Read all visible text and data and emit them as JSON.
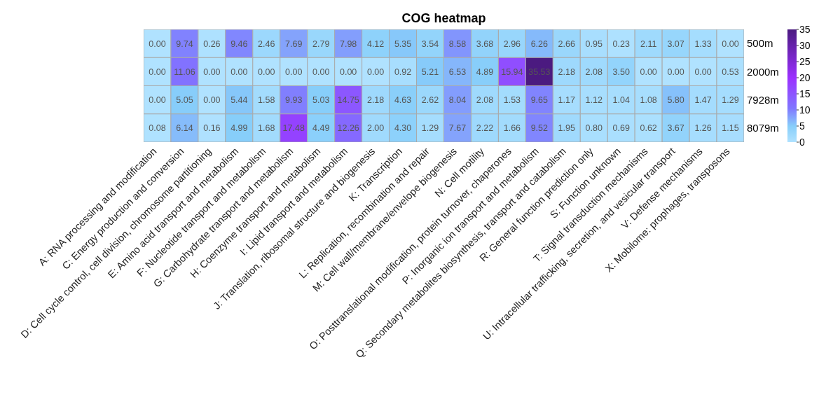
{
  "chart_data": {
    "type": "heatmap",
    "title": "COG heatmap",
    "categories": [
      "A: RNA processing and modification",
      "C: Energy production and conversion",
      "D: Cell cycle control, cell division, chromosome partitioning",
      "E: Amino acid transport and metabolism",
      "F: Nucleotide transport and metabolism",
      "G: Carbohydrate transport and metabolism",
      "H: Coenzyme transport and metabolism",
      "I: Lipid transport and metabolism",
      "J: Translation, ribosomal structure and biogenesis",
      "K: Transcription",
      "L: Replication, recombination and repair",
      "M: Cell wall/membrane/envelope biogenesis",
      "N: Cell motility",
      "O: Posttranslational modification, protein turnover, chaperones",
      "P: Inorganic ion transport and metabolism",
      "Q: Secondary metabolites biosynthesis, transport and catabolism",
      "R: General function prediction only",
      "S: Function unknown",
      "T: Signal transduction mechanisms",
      "U: Intracellular trafficking, secretion, and vesicular transport",
      "V: Defense mechanisms",
      "X: Mobilome: prophages, transposons"
    ],
    "y_categories": [
      "500m",
      "2000m",
      "7928m",
      "8079m"
    ],
    "cells": [
      [
        0.0,
        9.74,
        0.26,
        9.46,
        2.46,
        7.69,
        2.79,
        7.98,
        4.12,
        5.35,
        3.54,
        8.58,
        3.68,
        2.96,
        6.26,
        2.66,
        0.95,
        0.23,
        2.11,
        3.07,
        1.33,
        0.0
      ],
      [
        0.0,
        11.06,
        0.0,
        0.0,
        0.0,
        0.0,
        0.0,
        0.0,
        0.0,
        0.92,
        5.21,
        6.53,
        4.89,
        15.94,
        35.53,
        2.18,
        2.08,
        3.5,
        0.0,
        0.0,
        0.0,
        0.53
      ],
      [
        0.0,
        5.05,
        0.0,
        5.44,
        1.58,
        9.93,
        5.03,
        14.75,
        2.18,
        4.63,
        2.62,
        8.04,
        2.08,
        1.53,
        9.65,
        1.17,
        1.12,
        1.04,
        1.08,
        5.8,
        1.47,
        1.29
      ],
      [
        0.08,
        6.14,
        0.16,
        4.99,
        1.68,
        17.48,
        4.49,
        12.26,
        2.0,
        4.3,
        1.29,
        7.67,
        2.22,
        1.66,
        9.52,
        1.95,
        0.8,
        0.69,
        0.62,
        3.67,
        1.26,
        1.15
      ]
    ],
    "cell_labels": [
      [
        "0.00",
        "9.74",
        "0.26",
        "9.46",
        "2.46",
        "7.69",
        "2.79",
        "7.98",
        "4.12",
        "5.35",
        "3.54",
        "8.58",
        "3.68",
        "2.96",
        "6.26",
        "2.66",
        "0.95",
        "0.23",
        "2.11",
        "3.07",
        "1.33",
        "0.00"
      ],
      [
        "0.00",
        "11.06",
        "0.00",
        "0.00",
        "0.00",
        "0.00",
        "0.00",
        "0.00",
        "0.00",
        "0.92",
        "5.21",
        "6.53",
        "4.89",
        "15.94",
        "35.53",
        "2.18",
        "2.08",
        "3.50",
        "0.00",
        "0.00",
        "0.00",
        "0.53"
      ],
      [
        "0.00",
        "5.05",
        "0.00",
        "5.44",
        "1.58",
        "9.93",
        "5.03",
        "14.75",
        "2.18",
        "4.63",
        "2.62",
        "8.04",
        "2.08",
        "1.53",
        "9.65",
        "1.17",
        "1.12",
        "1.04",
        "1.08",
        "5.80",
        "1.47",
        "1.29"
      ],
      [
        "0.08",
        "6.14",
        "0.16",
        "4.99",
        "1.68",
        "17.48",
        "4.49",
        "12.26",
        "2.00",
        "4.30",
        "1.29",
        "7.67",
        "2.22",
        "1.66",
        "9.52",
        "1.95",
        "0.80",
        "0.69",
        "0.62",
        "3.67",
        "1.26",
        "1.15"
      ]
    ],
    "clim": [
      0,
      35
    ],
    "cticks": [
      0,
      5,
      10,
      15,
      20,
      25,
      30,
      35
    ]
  }
}
